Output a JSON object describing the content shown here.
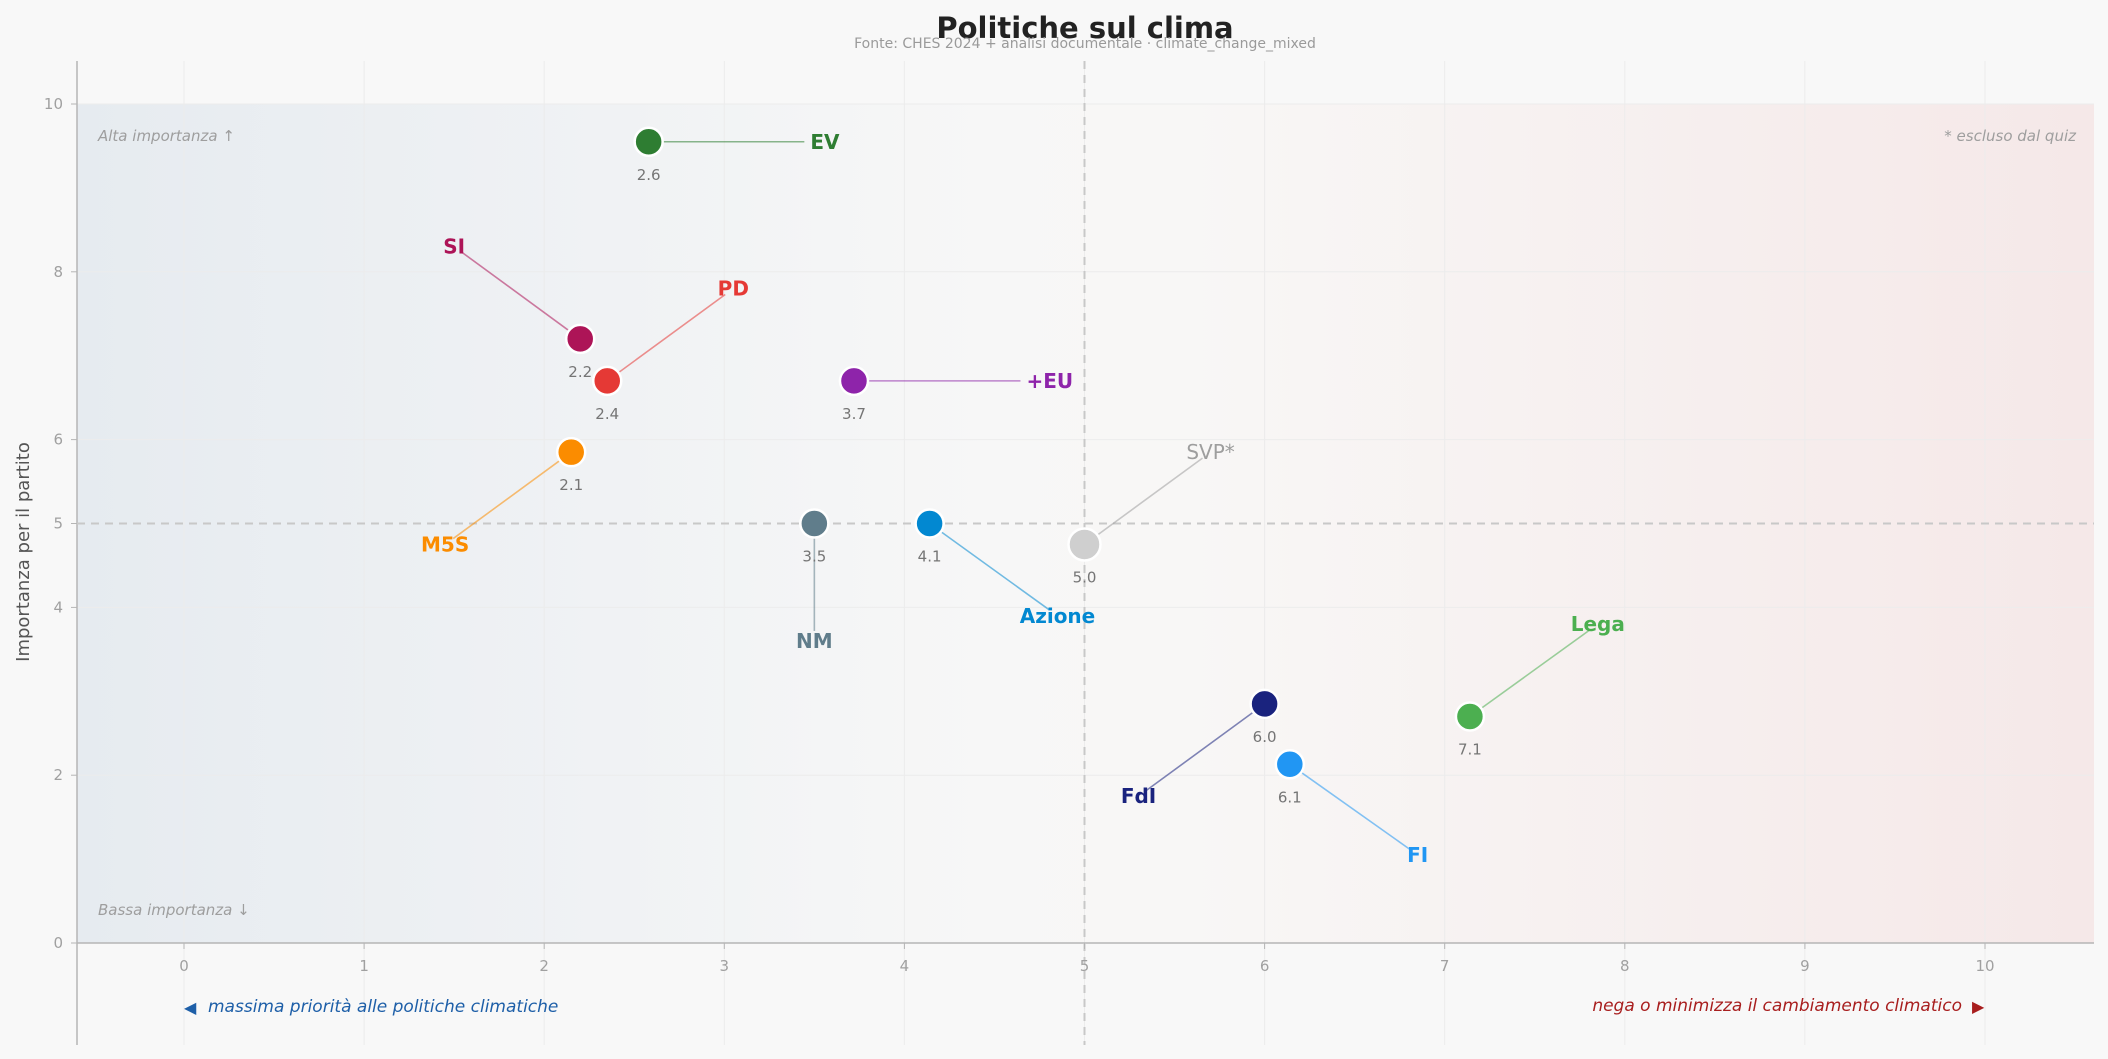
{
  "chart_data": {
    "type": "scatter",
    "title": "Politiche sul clima",
    "subtitle": "Fonte: CHES 2024 + analisi documentale  ·  climate_change_mixed",
    "xlabel": "",
    "ylabel": "Importanza per il partito",
    "xlim": [
      -0.6,
      10.6
    ],
    "ylim": [
      -1.2,
      10.5
    ],
    "xticks": [
      "0",
      "1",
      "2",
      "3",
      "4",
      "5",
      "6",
      "7",
      "8",
      "9",
      "10"
    ],
    "yticks": [
      "0",
      "2",
      "4",
      "5",
      "6",
      "8",
      "10"
    ],
    "grid": true,
    "reference_lines": {
      "x": 5,
      "y": 5
    },
    "corner_notes": {
      "top_left": "Alta importanza ↑",
      "bottom_left": "Bassa importanza ↓",
      "top_right": "* escluso dal quiz"
    },
    "axis_captions": {
      "left": "massima priorità alle politiche climatiche",
      "right": "nega o minimizza il cambiamento climatico",
      "left_arrow": "◀",
      "right_arrow": "▶"
    },
    "colors": {
      "left_caption": "#1e5fa8",
      "right_caption": "#a81e1e",
      "gradient_left": "#e6ebf0",
      "gradient_right": "#f5e8e8"
    },
    "points": [
      {
        "party": "EV",
        "x": 2.58,
        "y": 9.55,
        "value_label": "2.6",
        "color": "#2e7d32",
        "label_x": 3.5,
        "label_y": 9.55
      },
      {
        "party": "SI",
        "x": 2.2,
        "y": 7.2,
        "value_label": "2.2",
        "color": "#ad1457",
        "label_x": 1.5,
        "label_y": 8.3
      },
      {
        "party": "PD",
        "x": 2.35,
        "y": 6.7,
        "value_label": "2.4",
        "color": "#e53935",
        "label_x": 3.05,
        "label_y": 7.8
      },
      {
        "party": "+EU",
        "x": 3.72,
        "y": 6.7,
        "value_label": "3.7",
        "color": "#8e24aa",
        "label_x": 4.7,
        "label_y": 6.7
      },
      {
        "party": "M5S",
        "x": 2.15,
        "y": 5.85,
        "value_label": "2.1",
        "color": "#fb8c00",
        "label_x": 1.45,
        "label_y": 4.75
      },
      {
        "party": "NM",
        "x": 3.5,
        "y": 5.0,
        "value_label": "3.5",
        "color": "#607d8b",
        "label_x": 3.5,
        "label_y": 3.6
      },
      {
        "party": "Azione",
        "x": 4.14,
        "y": 5.0,
        "value_label": "4.1",
        "color": "#0288d1",
        "label_x": 4.85,
        "label_y": 3.9
      },
      {
        "party": "SVP*",
        "x": 5.0,
        "y": 4.75,
        "value_label": "5.0",
        "color": "#cfcfcf",
        "label_color": "#9e9e9e",
        "label_x": 5.7,
        "label_y": 5.85,
        "excluded": true
      },
      {
        "party": "FdI",
        "x": 6.0,
        "y": 2.85,
        "value_label": "6.0",
        "color": "#1a237e",
        "label_x": 5.3,
        "label_y": 1.75
      },
      {
        "party": "FI",
        "x": 6.14,
        "y": 2.13,
        "value_label": "6.1",
        "color": "#2196f3",
        "label_x": 6.85,
        "label_y": 1.05
      },
      {
        "party": "Lega",
        "x": 7.14,
        "y": 2.7,
        "value_label": "7.1",
        "color": "#4caf50",
        "label_x": 7.85,
        "label_y": 3.8
      }
    ]
  }
}
